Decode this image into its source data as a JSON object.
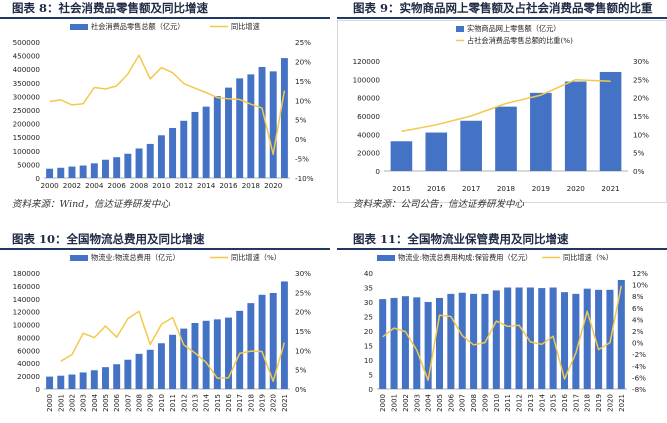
{
  "colors": {
    "bar": "#4472c4",
    "line": "#f2c94c",
    "title_rule": "#1f3864"
  },
  "panels": [
    {
      "title": "图表 8：社会消费品零售额及同比增速",
      "source": "资料来源：Wind，信达证券研发中心",
      "chart_data": {
        "type": "bar",
        "x_tick_labels": [
          "2000",
          "2002",
          "2004",
          "2006",
          "2008",
          "2010",
          "2012",
          "2014",
          "2016",
          "2018",
          "2020"
        ],
        "categories": [
          "2000",
          "2001",
          "2002",
          "2003",
          "2004",
          "2005",
          "2006",
          "2007",
          "2008",
          "2009",
          "2010",
          "2011",
          "2012",
          "2013",
          "2014",
          "2015",
          "2016",
          "2017",
          "2018",
          "2019",
          "2020",
          "2021"
        ],
        "series": [
          {
            "name": "社会消费品零售总额（亿元）",
            "type": "bar",
            "axis": "left",
            "values": [
              34153,
              37595,
              42027,
              45842,
              53950,
              67177,
              76410,
              89210,
              108488,
              125343,
              156998,
              183919,
              210307,
              242843,
              262394,
              300931,
              332316,
              366262,
              380987,
              408017,
              391981,
              440823
            ]
          },
          {
            "name": "同比增速",
            "type": "line",
            "axis": "right",
            "values": [
              9.7,
              10.1,
              8.8,
              9.1,
              13.3,
              12.9,
              13.7,
              16.8,
              21.6,
              15.5,
              18.4,
              17.1,
              14.3,
              13.1,
              12.0,
              10.7,
              10.4,
              10.2,
              9.0,
              8.0,
              -3.9,
              12.5
            ]
          }
        ],
        "ylim_left": [
          0,
          500000
        ],
        "ytick_step_left": 50000,
        "ylim_right": [
          -10,
          25
        ],
        "ytick_step_right": 5,
        "right_unit": "%",
        "legend": "top"
      }
    },
    {
      "title": "图表 9：实物商品网上零售额及占社会消费品零售额的比重",
      "source": "资料来源：公司公告，信达证券研发中心",
      "chart_data": {
        "type": "bar",
        "x_tick_labels": [
          "2015",
          "2016",
          "2017",
          "2018",
          "2019",
          "2020",
          "2021"
        ],
        "categories": [
          "2015",
          "2016",
          "2017",
          "2018",
          "2019",
          "2020",
          "2021"
        ],
        "series": [
          {
            "name": "实物商品网上零售额（亿元）",
            "type": "bar",
            "axis": "left",
            "values": [
              32424,
              41944,
              54806,
              70198,
              85239,
              97590,
              108042
            ]
          },
          {
            "name": "占社会消费品零售总额的比重(%)",
            "type": "line",
            "axis": "right",
            "values": [
              10.8,
              12.6,
              15.0,
              18.4,
              20.7,
              24.9,
              24.5
            ]
          }
        ],
        "ylim_left": [
          0,
          120000
        ],
        "ytick_step_left": 20000,
        "ylim_right": [
          0,
          30
        ],
        "ytick_step_right": 5,
        "right_unit": "%",
        "legend": "top-left"
      }
    },
    {
      "title": "图表 10：全国物流总费用及同比增速",
      "source": "",
      "chart_data": {
        "type": "bar",
        "x_tick_labels": [
          "2000",
          "2001",
          "2002",
          "2003",
          "2004",
          "2005",
          "2006",
          "2007",
          "2008",
          "2009",
          "2010",
          "2011",
          "2012",
          "2013",
          "2014",
          "2015",
          "2016",
          "2017",
          "2018",
          "2019",
          "2020",
          "2021"
        ],
        "categories": [
          "2000",
          "2001",
          "2002",
          "2003",
          "2004",
          "2005",
          "2006",
          "2007",
          "2008",
          "2009",
          "2010",
          "2011",
          "2012",
          "2013",
          "2014",
          "2015",
          "2016",
          "2017",
          "2018",
          "2019",
          "2020",
          "2021"
        ],
        "series": [
          {
            "name": "物流业:物流总费用（亿元）",
            "type": "bar",
            "axis": "left",
            "values": [
              19230,
              20619,
              22464,
              25695,
              29114,
              33860,
              38414,
              45406,
              54542,
              60826,
              70984,
              84102,
              93702,
              102397,
              105860,
              108087,
              110805,
              121298,
              133248,
              146159,
              149010,
              166883
            ]
          },
          {
            "name": "同比增速（%）",
            "type": "line",
            "axis": "right",
            "values": [
              null,
              7.2,
              8.9,
              14.4,
              13.3,
              16.3,
              13.4,
              18.2,
              20.1,
              11.5,
              16.7,
              18.5,
              11.4,
              9.3,
              6.9,
              2.8,
              2.9,
              9.2,
              9.8,
              9.7,
              2.0,
              12.0
            ]
          }
        ],
        "ylim_left": [
          0,
          180000
        ],
        "ytick_step_left": 20000,
        "ylim_right": [
          0,
          30
        ],
        "ytick_step_right": 5,
        "right_unit": "%",
        "legend": "top"
      }
    },
    {
      "title": "图表 11：全国物流业保管费用及同比增速",
      "source": "",
      "chart_data": {
        "type": "bar",
        "x_tick_labels": [
          "2000",
          "2001",
          "2002",
          "2003",
          "2004",
          "2005",
          "2006",
          "2007",
          "2008",
          "2009",
          "2010",
          "2011",
          "2012",
          "2013",
          "2014",
          "2015",
          "2016",
          "2017",
          "2018",
          "2019",
          "2020",
          "2021"
        ],
        "categories": [
          "2000",
          "2001",
          "2002",
          "2003",
          "2004",
          "2005",
          "2006",
          "2007",
          "2008",
          "2009",
          "2010",
          "2011",
          "2012",
          "2013",
          "2014",
          "2015",
          "2016",
          "2017",
          "2018",
          "2019",
          "2020",
          "2021"
        ],
        "series": [
          {
            "name": "物流业:物流总费用构成:保管费用（亿元）",
            "type": "bar",
            "axis": "left",
            "values": [
              31.0,
              31.4,
              32.0,
              31.6,
              30.0,
              31.4,
              32.8,
              33.2,
              32.8,
              32.8,
              34.0,
              35.0,
              35.0,
              35.0,
              34.8,
              35.0,
              33.4,
              32.8,
              34.6,
              34.2,
              34.2,
              37.6
            ]
          },
          {
            "name": "同比增速（%）",
            "type": "line",
            "axis": "right",
            "values": [
              1.0,
              2.5,
              1.9,
              -1.3,
              -6.5,
              4.7,
              4.5,
              1.2,
              -0.4,
              0.0,
              3.7,
              2.8,
              3.0,
              0.1,
              -0.3,
              1.1,
              -6.3,
              -1.8,
              5.4,
              -1.2,
              0.0,
              9.8
            ]
          }
        ],
        "ylim_left": [
          0,
          40
        ],
        "ytick_step_left": 5,
        "ylim_right": [
          -8,
          12
        ],
        "ytick_step_right": 2,
        "right_unit": "%",
        "legend": "top"
      }
    }
  ]
}
